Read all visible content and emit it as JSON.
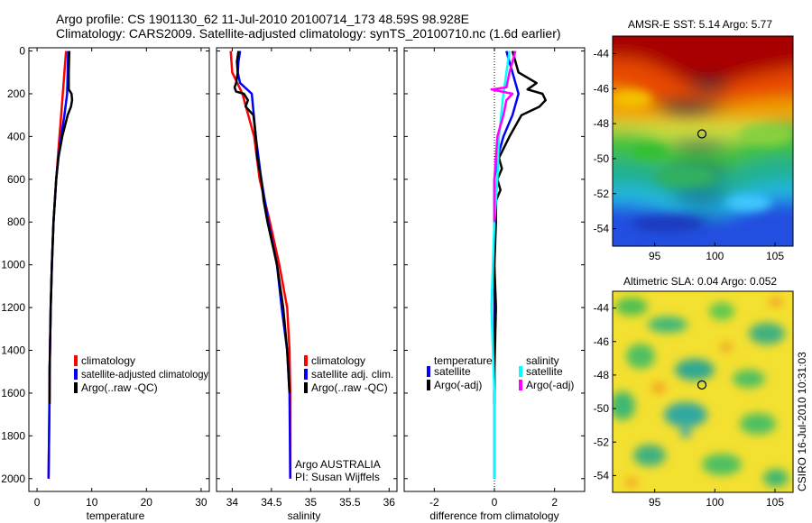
{
  "title": {
    "line1": "Argo profile: CS 1901130_62 11-Jul-2010 20100714_173 48.59S 98.928E",
    "line2": "Climatology: CARS2009. Satellite-adjusted climatology: synTS_20100710.nc (1.6d earlier)"
  },
  "colors": {
    "climatology": "#ff0000",
    "satellite": "#0000ff",
    "argo": "#000000",
    "salinity_satellite": "#00ffff",
    "salinity_argo": "#ff00ff"
  },
  "chart_data": [
    {
      "type": "line",
      "id": "temperature",
      "xlabel": "temperature",
      "xlim": [
        -1.5,
        31.5
      ],
      "ylim": [
        2060,
        -15
      ],
      "xticks": [
        "0",
        "10",
        "20",
        "30"
      ],
      "xtick_values": [
        0,
        10,
        20,
        30
      ],
      "yticks": [
        "0",
        "200",
        "400",
        "600",
        "800",
        "1000",
        "1200",
        "1400",
        "1600",
        "1800",
        "2000"
      ],
      "ytick_values": [
        0,
        200,
        400,
        600,
        800,
        1000,
        1200,
        1400,
        1600,
        1800,
        2000
      ],
      "legend": [
        "climatology",
        "satellite-adjusted climatology",
        "Argo(..raw -QC)"
      ],
      "series": [
        {
          "name": "climatology",
          "color": "#ff0000",
          "depth": [
            0,
            100,
            200,
            300,
            400,
            500,
            600,
            800,
            1000,
            1200,
            1500,
            1600,
            1800,
            2000
          ],
          "values": [
            5.3,
            5.0,
            4.7,
            4.4,
            4.1,
            3.8,
            3.5,
            3.0,
            2.7,
            2.5,
            2.3,
            2.3,
            2.2,
            2.1
          ]
        },
        {
          "name": "satellite",
          "color": "#0000ff",
          "depth": [
            0,
            100,
            200,
            300,
            400,
            500,
            600,
            800,
            1000,
            1200,
            1500,
            1800,
            2000
          ],
          "values": [
            5.7,
            5.6,
            5.5,
            5.0,
            4.4,
            3.9,
            3.5,
            3.0,
            2.7,
            2.5,
            2.3,
            2.2,
            2.1
          ]
        },
        {
          "name": "Argo",
          "color": "#000000",
          "depth": [
            0,
            100,
            180,
            200,
            230,
            260,
            300,
            400,
            500,
            600,
            800,
            1000,
            1200,
            1500,
            1650
          ],
          "values": [
            5.9,
            5.8,
            5.8,
            6.3,
            6.4,
            6.2,
            5.6,
            4.6,
            3.9,
            3.5,
            3.0,
            2.7,
            2.5,
            2.3,
            2.3
          ]
        }
      ]
    },
    {
      "type": "line",
      "id": "salinity",
      "xlabel": "salinity",
      "xlim": [
        33.8,
        36.1
      ],
      "ylim": [
        2060,
        -15
      ],
      "xticks": [
        "34",
        "34.5",
        "35",
        "35.5",
        "36"
      ],
      "xtick_values": [
        34,
        34.5,
        35,
        35.5,
        36
      ],
      "legend": [
        "climatology",
        "satellite adj. clim.",
        "Argo(..raw -QC)"
      ],
      "series": [
        {
          "name": "climatology",
          "color": "#ff0000",
          "depth": [
            0,
            100,
            200,
            400,
            600,
            800,
            1000,
            1200,
            1400,
            1600,
            2000
          ],
          "values": [
            33.98,
            34.0,
            34.13,
            34.28,
            34.35,
            34.48,
            34.6,
            34.7,
            34.73,
            34.74,
            34.74
          ]
        },
        {
          "name": "satellite",
          "color": "#0000ff",
          "depth": [
            0,
            50,
            100,
            150,
            200,
            400,
            600,
            800,
            1000,
            1200,
            1400,
            1600,
            2000
          ],
          "values": [
            34.1,
            34.08,
            34.07,
            34.1,
            34.25,
            34.3,
            34.37,
            34.46,
            34.57,
            34.63,
            34.7,
            34.73,
            34.74
          ]
        },
        {
          "name": "Argo",
          "color": "#000000",
          "depth": [
            0,
            50,
            100,
            150,
            170,
            190,
            200,
            230,
            260,
            300,
            400,
            500,
            600,
            700,
            800,
            1000,
            1200,
            1400,
            1600
          ],
          "values": [
            34.08,
            34.06,
            34.07,
            34.05,
            34.03,
            34.05,
            34.15,
            34.2,
            34.17,
            34.27,
            34.3,
            34.32,
            34.37,
            34.4,
            34.45,
            34.57,
            34.65,
            34.7,
            34.73
          ]
        }
      ],
      "annotations": [
        "Argo AUSTRALIA",
        "PI: Susan Wijffels"
      ]
    },
    {
      "type": "line",
      "id": "difference",
      "xlabel": "difference from climatology",
      "xlim": [
        -3.0,
        3.0
      ],
      "ylim": [
        2060,
        -15
      ],
      "xticks": [
        "-2",
        "0",
        "2"
      ],
      "xtick_values": [
        -2,
        0,
        2
      ],
      "legend_headers": [
        "temperature",
        "salinity"
      ],
      "legend": [
        "satellite",
        "Argo(-adj)",
        "satellite",
        "Argo(-adj)"
      ],
      "series": [
        {
          "name": "temperature satellite",
          "color": "#0000ff",
          "depth": [
            0,
            100,
            200,
            300,
            400,
            500,
            600,
            800,
            1000,
            1200,
            1500,
            1800,
            2000
          ],
          "values": [
            0.4,
            0.6,
            0.8,
            0.6,
            0.3,
            0.1,
            0.0,
            0.0,
            0.0,
            0.0,
            0.0,
            0.0,
            0.0
          ]
        },
        {
          "name": "temperature Argo",
          "color": "#000000",
          "depth": [
            0,
            100,
            150,
            180,
            200,
            230,
            260,
            300,
            400,
            500,
            550,
            600,
            650,
            700,
            800,
            1000,
            1200,
            1500,
            1650
          ],
          "values": [
            0.6,
            0.8,
            1.4,
            1.1,
            1.6,
            1.7,
            1.5,
            0.9,
            0.5,
            0.15,
            0.25,
            0.1,
            0.2,
            0.05,
            0.05,
            0.0,
            0.05,
            0.0,
            0.0
          ]
        },
        {
          "name": "salinity satellite",
          "color": "#00ffff",
          "depth": [
            0,
            100,
            200,
            400,
            600,
            800,
            1000,
            1200,
            1400,
            1600,
            2000
          ],
          "values": [
            0.5,
            0.4,
            0.3,
            0.15,
            0.1,
            0.0,
            -0.05,
            -0.1,
            -0.05,
            0.0,
            0.0
          ]
        },
        {
          "name": "salinity Argo",
          "color": "#ff00ff",
          "depth": [
            0,
            100,
            170,
            180,
            200,
            230,
            300,
            400,
            600,
            800
          ],
          "values": [
            0.7,
            0.5,
            0.4,
            -0.1,
            0.6,
            0.4,
            0.3,
            0.1,
            0.0,
            0.0
          ]
        }
      ]
    },
    {
      "type": "heatmap",
      "id": "sst-map",
      "title": "AMSR-E SST: 5.14 Argo: 5.77",
      "xlim": [
        91.5,
        106.5
      ],
      "ylim": [
        -55,
        -43
      ],
      "xticks": [
        "95",
        "100",
        "105"
      ],
      "xtick_values": [
        95,
        100,
        105
      ],
      "yticks": [
        "-44",
        "-46",
        "-48",
        "-50",
        "-52",
        "-54"
      ],
      "ytick_values": [
        -44,
        -46,
        -48,
        -50,
        -52,
        -54
      ],
      "marker": {
        "lon": 98.928,
        "lat": -48.59
      }
    },
    {
      "type": "heatmap",
      "id": "sla-map",
      "title": "Altimetric SLA: 0.04 Argo: 0.052",
      "xlim": [
        91.5,
        106.5
      ],
      "ylim": [
        -55,
        -43
      ],
      "xticks": [
        "95",
        "100",
        "105"
      ],
      "xtick_values": [
        95,
        100,
        105
      ],
      "yticks": [
        "-44",
        "-46",
        "-48",
        "-50",
        "-52",
        "-54"
      ],
      "ytick_values": [
        -44,
        -46,
        -48,
        -50,
        -52,
        -54
      ],
      "marker": {
        "lon": 98.928,
        "lat": -48.59
      }
    }
  ],
  "footer": {
    "stamp": "CSIRO 16-Jul-2010 10:31:03"
  }
}
